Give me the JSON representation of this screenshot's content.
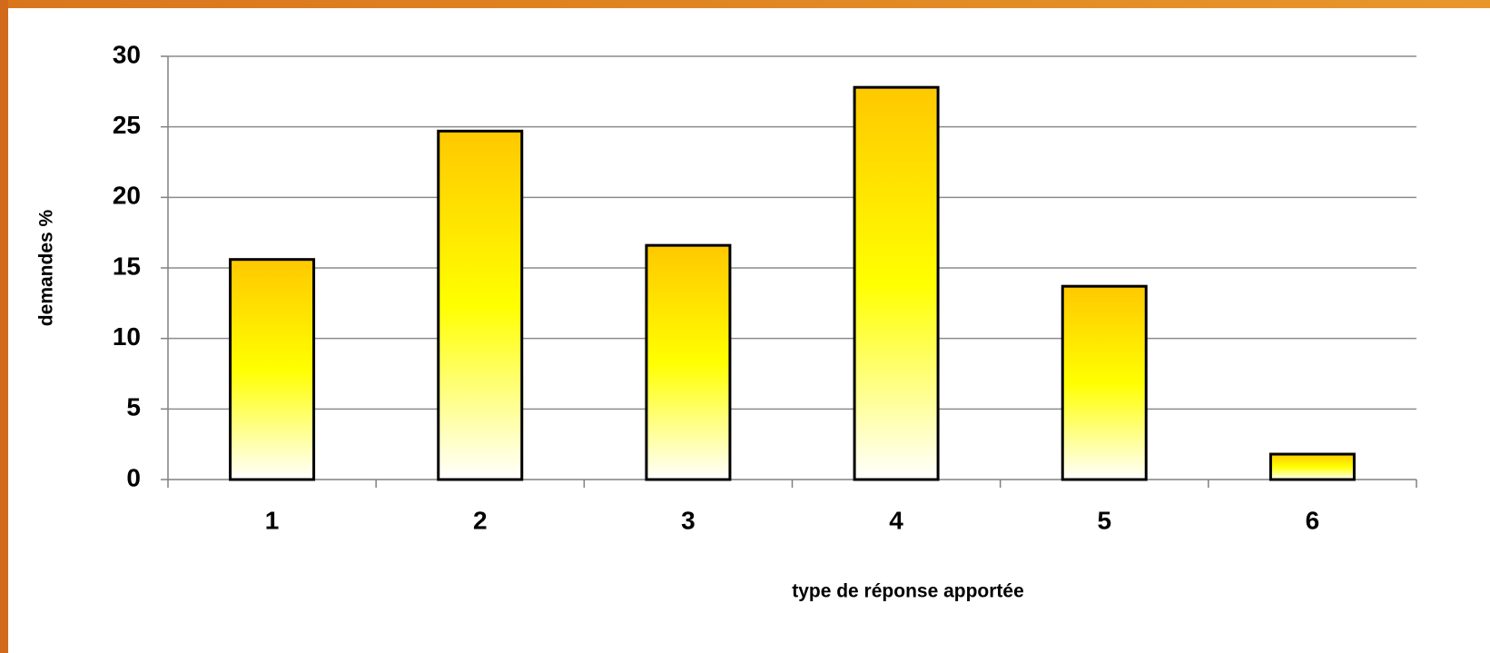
{
  "chart_data": {
    "type": "bar",
    "categories": [
      "1",
      "2",
      "3",
      "4",
      "5",
      "6"
    ],
    "values": [
      15.6,
      24.7,
      16.6,
      27.8,
      13.7,
      1.8
    ],
    "xlabel": "type de réponse apportée",
    "ylabel": "demandes %",
    "ylim": [
      0,
      30
    ],
    "yticks": [
      0,
      5,
      10,
      15,
      20,
      25,
      30
    ],
    "grid": true
  }
}
